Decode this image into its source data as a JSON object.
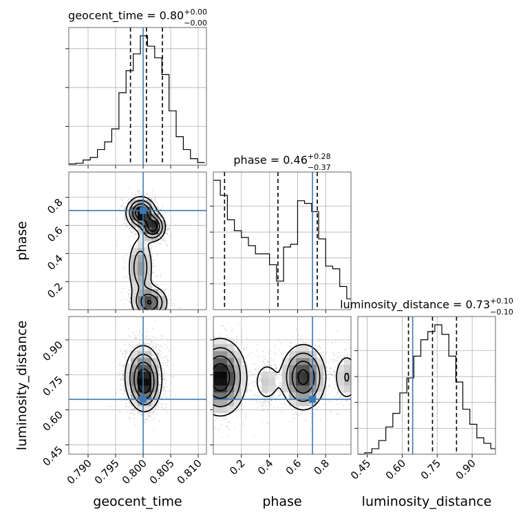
{
  "chart_data": {
    "type": "corner",
    "parameters": [
      "geocent_time",
      "phase",
      "luminosity_distance"
    ],
    "truths": {
      "geocent_time": 0.8,
      "phase": 0.706,
      "luminosity_distance": 0.645
    },
    "axes": {
      "geocent_time": {
        "label": "geocent_time",
        "range": [
          0.7865,
          0.8115
        ],
        "ticks": [
          0.79,
          0.795,
          0.8,
          0.805,
          0.81
        ],
        "tick_labels": [
          "0.790",
          "0.795",
          "0.800",
          "0.805",
          "0.810"
        ]
      },
      "phase": {
        "label": "phase",
        "range": [
          0.0,
          0.98
        ],
        "ticks": [
          0.2,
          0.4,
          0.6,
          0.8
        ],
        "tick_labels": [
          "0.2",
          "0.4",
          "0.6",
          "0.8"
        ]
      },
      "luminosity_distance": {
        "label": "luminosity_distance",
        "range": [
          0.41,
          1.0
        ],
        "ticks": [
          0.45,
          0.6,
          0.75,
          0.9
        ],
        "tick_labels": [
          "0.45",
          "0.60",
          "0.75",
          "0.90"
        ]
      }
    },
    "marginals": {
      "geocent_time": {
        "title": {
          "text": "geocent_time = 0.80",
          "plus": "+0.00",
          "minus": "−0.00"
        },
        "quantiles": [
          0.7977,
          0.8006,
          0.8035
        ],
        "bin_edges": [
          0.7865,
          0.7878,
          0.7891,
          0.7904,
          0.7917,
          0.793,
          0.7943,
          0.7956,
          0.7969,
          0.7982,
          0.7995,
          0.8008,
          0.8021,
          0.8034,
          0.8047,
          0.806,
          0.8073,
          0.8086,
          0.8099,
          0.8112
        ],
        "counts": [
          0.01,
          0.015,
          0.04,
          0.06,
          0.12,
          0.18,
          0.28,
          0.56,
          0.73,
          0.86,
          1.0,
          0.92,
          0.83,
          0.7,
          0.42,
          0.22,
          0.12,
          0.05,
          0.02
        ]
      },
      "phase": {
        "title": {
          "text": "phase = 0.46",
          "plus": "+0.28",
          "minus": "−0.37"
        },
        "quantiles": [
          0.08,
          0.46,
          0.74
        ],
        "bin_edges": [
          0.0,
          0.05,
          0.1,
          0.15,
          0.2,
          0.25,
          0.3,
          0.35,
          0.4,
          0.45,
          0.5,
          0.55,
          0.6,
          0.65,
          0.7,
          0.75,
          0.8,
          0.85,
          0.9,
          0.95,
          0.98
        ],
        "counts": [
          0.95,
          0.84,
          0.66,
          0.58,
          0.53,
          0.47,
          0.41,
          0.41,
          0.33,
          0.21,
          0.46,
          0.48,
          0.8,
          0.78,
          0.72,
          0.52,
          0.32,
          0.3,
          0.17,
          0.08
        ]
      },
      "luminosity_distance": {
        "title": {
          "text": "luminosity_distance = 0.73",
          "plus": "+0.10",
          "minus": "−0.10"
        },
        "quantiles": [
          0.627,
          0.73,
          0.833
        ],
        "bin_edges": [
          0.41,
          0.44,
          0.47,
          0.5,
          0.53,
          0.56,
          0.59,
          0.62,
          0.65,
          0.68,
          0.71,
          0.74,
          0.77,
          0.8,
          0.83,
          0.86,
          0.89,
          0.92,
          0.95,
          0.98,
          1.0
        ],
        "counts": [
          0.0,
          0.01,
          0.04,
          0.1,
          0.2,
          0.3,
          0.45,
          0.56,
          0.72,
          0.84,
          0.9,
          0.95,
          0.88,
          0.72,
          0.53,
          0.33,
          0.22,
          0.12,
          0.08,
          0.04
        ]
      }
    },
    "pairs": [
      {
        "x": "geocent_time",
        "y": "phase",
        "density_modes": [
          {
            "x": 0.7996,
            "y": 0.69,
            "sx": 0.0013,
            "sy": 0.055,
            "w": 1.0
          },
          {
            "x": 0.8018,
            "y": 0.59,
            "sx": 0.0011,
            "sy": 0.05,
            "w": 0.9
          },
          {
            "x": 0.7995,
            "y": 0.3,
            "sx": 0.0012,
            "sy": 0.12,
            "w": 0.45
          },
          {
            "x": 0.8012,
            "y": 0.05,
            "sx": 0.0016,
            "sy": 0.06,
            "w": 0.75
          }
        ]
      },
      {
        "x": "geocent_time",
        "y": "luminosity_distance",
        "density_modes": [
          {
            "x": 0.8,
            "y": 0.74,
            "sx": 0.0017,
            "sy": 0.07,
            "w": 1.0
          },
          {
            "x": 0.8005,
            "y": 0.7,
            "sx": 0.0012,
            "sy": 0.05,
            "w": 0.5
          }
        ]
      },
      {
        "x": "phase",
        "y": "luminosity_distance",
        "density_modes": [
          {
            "x": 0.05,
            "y": 0.74,
            "sx": 0.09,
            "sy": 0.08,
            "w": 1.0
          },
          {
            "x": 0.64,
            "y": 0.74,
            "sx": 0.08,
            "sy": 0.07,
            "w": 0.85
          },
          {
            "x": 0.38,
            "y": 0.72,
            "sx": 0.05,
            "sy": 0.05,
            "w": 0.25
          },
          {
            "x": 0.95,
            "y": 0.74,
            "sx": 0.05,
            "sy": 0.06,
            "w": 0.3
          }
        ]
      }
    ],
    "colors": {
      "truth": "#3a78b5",
      "hist": "#000000",
      "quantile": "#000000",
      "grid": "#b0b0b0",
      "scatter": "#9a9a9a"
    },
    "grid": true
  }
}
